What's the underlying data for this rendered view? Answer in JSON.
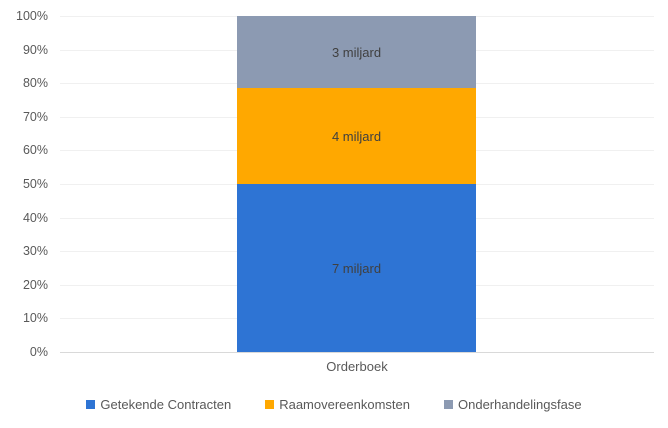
{
  "chart_data": {
    "type": "bar",
    "subtype": "100%-stacked-column",
    "categories": [
      "Orderboek"
    ],
    "series": [
      {
        "name": "Getekende Contracten",
        "values": [
          7
        ],
        "data_label": "7 miljard",
        "color": "#2E74D4"
      },
      {
        "name": "Raamovereenkomsten",
        "values": [
          4
        ],
        "data_label": "4 miljard",
        "color": "#FFA800"
      },
      {
        "name": "Onderhandelingsfase",
        "values": [
          3
        ],
        "data_label": "3 miljard",
        "color": "#8C9AB2"
      }
    ],
    "unit": "miljard",
    "title": "",
    "xlabel": "",
    "ylabel": "",
    "ylim": [
      0,
      100
    ],
    "yticks": [
      "0%",
      "10%",
      "20%",
      "30%",
      "40%",
      "50%",
      "60%",
      "70%",
      "80%",
      "90%",
      "100%"
    ],
    "ytick_format": "percent",
    "grid": true,
    "gridline_color": "#F0F0F0",
    "axis_line_color": "#D9D9D9",
    "text_color": "#595959",
    "data_label_color": "#404040",
    "legend_position": "bottom"
  }
}
